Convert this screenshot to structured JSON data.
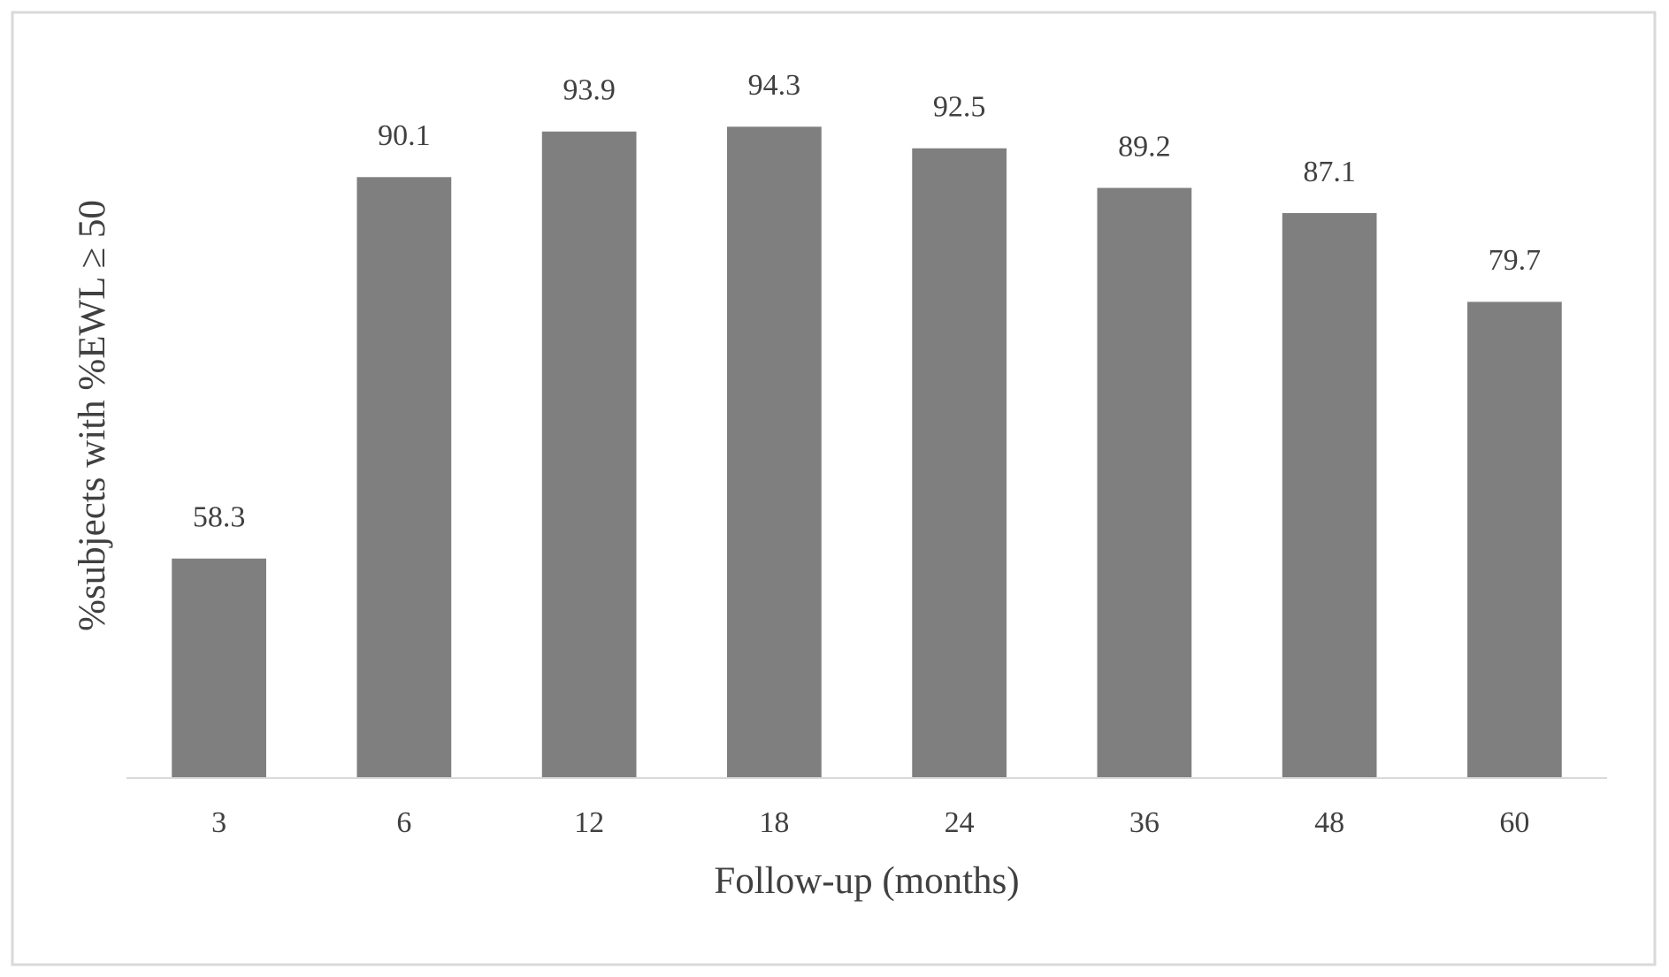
{
  "chart_data": {
    "type": "bar",
    "x_label": "Follow-up (months)",
    "y_label": "%subjects with %EWL ≥ 50",
    "categories": [
      "3",
      "6",
      "12",
      "18",
      "24",
      "36",
      "48",
      "60"
    ],
    "values": [
      58.3,
      90.1,
      93.9,
      94.3,
      92.5,
      89.2,
      87.1,
      79.7
    ],
    "color": "#7f7f7f",
    "ylim": [
      40,
      100
    ]
  }
}
